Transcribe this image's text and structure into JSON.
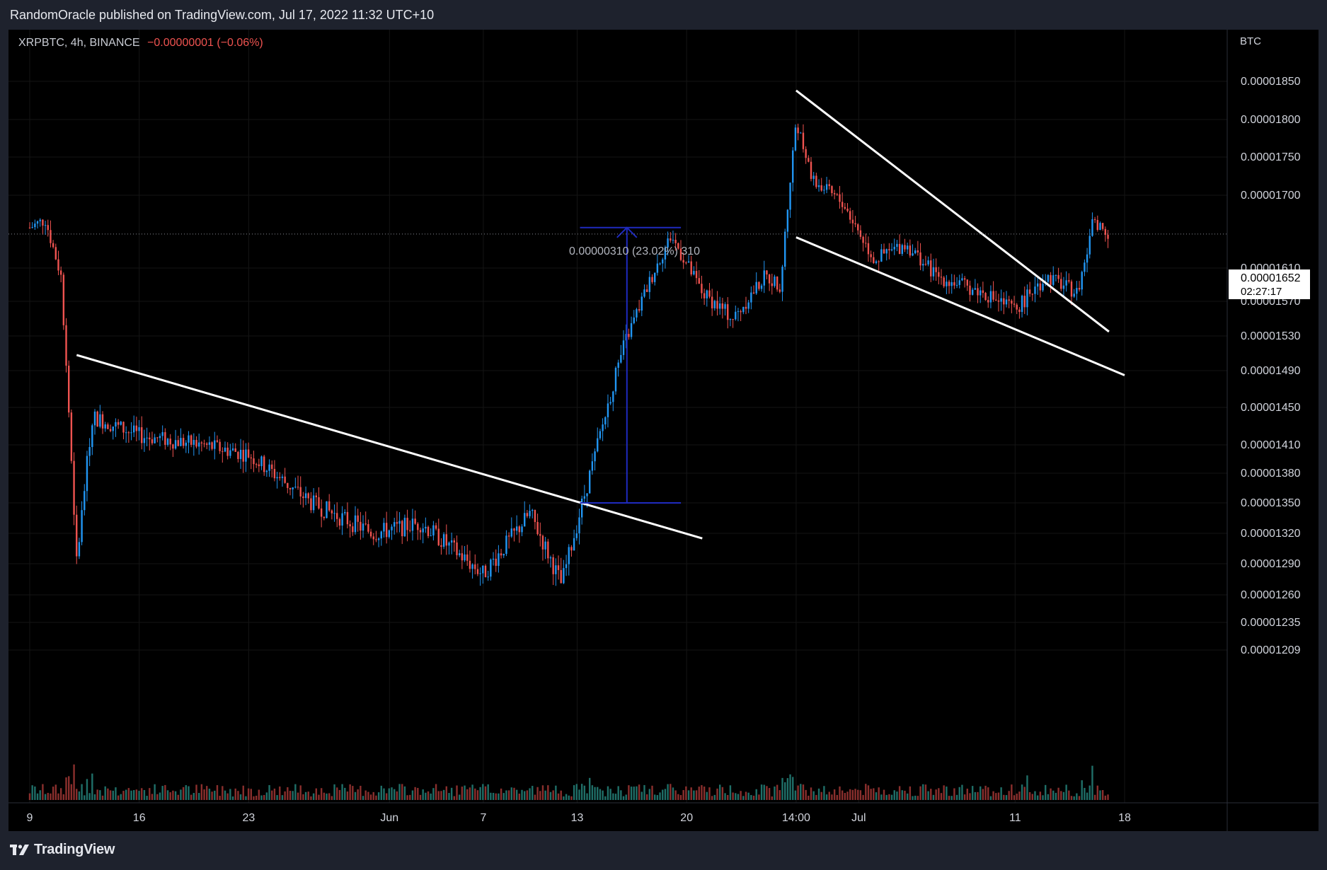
{
  "header": {
    "publisher_line": "RandomOracle published on TradingView.com, Jul 17, 2022 11:32 UTC+10"
  },
  "legend": {
    "symbol": "XRPBTC, 4h, BINANCE",
    "change": "−0.00000001 (−0.06%)"
  },
  "colors": {
    "up": "#26a69a",
    "down": "#ef5350",
    "candle_up": "#2196f3",
    "measure": "#1f2bbf",
    "trend": "#ffffff"
  },
  "footer": {
    "brand": "TradingView"
  },
  "chart_data": {
    "type": "candlestick",
    "symbol": "XRPBTC",
    "interval": "4h",
    "exchange": "BINANCE",
    "currency_label": "BTC",
    "y_ticks": [
      "0.00001850",
      "0.00001800",
      "0.00001750",
      "0.00001700",
      "0.00001610",
      "0.00001570",
      "0.00001530",
      "0.00001490",
      "0.00001450",
      "0.00001410",
      "0.00001380",
      "0.00001350",
      "0.00001320",
      "0.00001290",
      "0.00001260",
      "0.00001235",
      "0.00001209"
    ],
    "x_ticks": [
      "9",
      "16",
      "23",
      "Jun",
      "7",
      "13",
      "20",
      "14:00",
      "Jul",
      "11",
      "18"
    ],
    "last_price": "0.00001652",
    "countdown": "02:27:17",
    "measure_label": "0.00000310 (23.02%) 310",
    "price_path": [
      {
        "date": "May 9",
        "value": 1.66e-05
      },
      {
        "date": "May 10",
        "value": 1.67e-05
      },
      {
        "date": "May 11",
        "value": 1.6e-05
      },
      {
        "date": "May 12",
        "value": 1.29e-05
      },
      {
        "date": "May 13",
        "value": 1.44e-05
      },
      {
        "date": "May 16",
        "value": 1.42e-05
      },
      {
        "date": "May 20",
        "value": 1.41e-05
      },
      {
        "date": "May 23",
        "value": 1.4e-05
      },
      {
        "date": "May 27",
        "value": 1.35e-05
      },
      {
        "date": "May 31",
        "value": 1.32e-05
      },
      {
        "date": "Jun 3",
        "value": 1.33e-05
      },
      {
        "date": "Jun 7",
        "value": 1.28e-05
      },
      {
        "date": "Jun 10",
        "value": 1.34e-05
      },
      {
        "date": "Jun 12",
        "value": 1.27e-05
      },
      {
        "date": "Jun 14",
        "value": 1.39e-05
      },
      {
        "date": "Jun 16",
        "value": 1.52e-05
      },
      {
        "date": "Jun 18",
        "value": 1.61e-05
      },
      {
        "date": "Jun 19",
        "value": 1.65e-05
      },
      {
        "date": "Jun 21",
        "value": 1.58e-05
      },
      {
        "date": "Jun 23",
        "value": 1.55e-05
      },
      {
        "date": "Jun 25",
        "value": 1.6e-05
      },
      {
        "date": "Jun 26",
        "value": 1.59e-05
      },
      {
        "date": "Jun 27",
        "value": 1.8e-05
      },
      {
        "date": "Jun 28",
        "value": 1.72e-05
      },
      {
        "date": "Jun 30",
        "value": 1.69e-05
      },
      {
        "date": "Jul 2",
        "value": 1.62e-05
      },
      {
        "date": "Jul 4",
        "value": 1.64e-05
      },
      {
        "date": "Jul 6",
        "value": 1.6e-05
      },
      {
        "date": "Jul 9",
        "value": 1.58e-05
      },
      {
        "date": "Jul 11",
        "value": 1.56e-05
      },
      {
        "date": "Jul 13",
        "value": 1.6e-05
      },
      {
        "date": "Jul 15",
        "value": 1.58e-05
      },
      {
        "date": "Jul 16",
        "value": 1.67e-05
      },
      {
        "date": "Jul 17",
        "value": 1.652e-05
      }
    ],
    "trendlines": [
      {
        "name": "descending-trendline-may-jun",
        "from": {
          "date": "May 12",
          "value": 1.508e-05
        },
        "to": {
          "date": "Jun 21",
          "value": 1.315e-05
        }
      },
      {
        "name": "wedge-upper-line",
        "from": {
          "date": "Jun 27",
          "value": 1.838e-05
        },
        "to": {
          "date": "Jul 17",
          "value": 1.535e-05
        }
      },
      {
        "name": "wedge-lower-line",
        "from": {
          "date": "Jun 27",
          "value": 1.648e-05
        },
        "to": {
          "date": "Jul 18",
          "value": 1.485e-05
        }
      }
    ],
    "measure": {
      "from_value": 1.35e-05,
      "to_value": 1.66e-05
    }
  }
}
